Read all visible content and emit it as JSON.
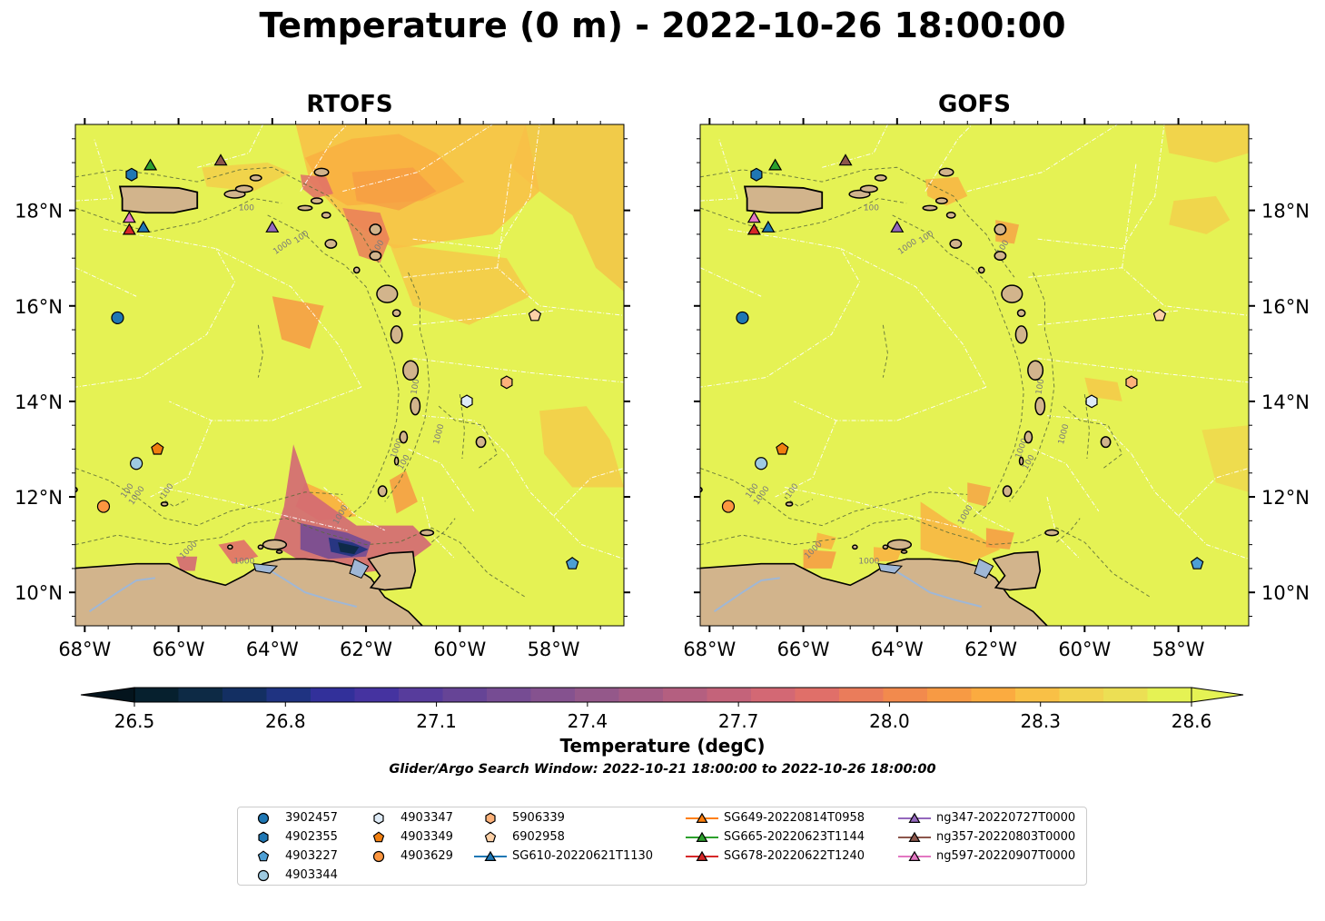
{
  "title": "Temperature (0 m) - 2022-10-26 18:00:00",
  "panels": [
    {
      "title": "RTOFS",
      "variant": "rtofs"
    },
    {
      "title": "GOFS",
      "variant": "gofs"
    }
  ],
  "axes": {
    "lon_range": [
      -68.2,
      -56.5
    ],
    "lat_range": [
      9.3,
      19.8
    ],
    "x_ticks": [
      -68,
      -66,
      -64,
      -62,
      -60,
      -58
    ],
    "x_tick_labels": [
      "68°W",
      "66°W",
      "64°W",
      "62°W",
      "60°W",
      "58°W"
    ],
    "y_ticks": [
      10,
      12,
      14,
      16,
      18
    ],
    "y_tick_labels": [
      "10°N",
      "12°N",
      "14°N",
      "16°N",
      "18°N"
    ]
  },
  "colorbar": {
    "label": "Temperature (degC)",
    "min": 26.5,
    "max": 28.6,
    "ticks": [
      26.5,
      26.8,
      27.1,
      27.4,
      27.7,
      28.0,
      28.3,
      28.6
    ],
    "tick_labels": [
      "26.5",
      "26.8",
      "27.1",
      "27.4",
      "27.7",
      "28.0",
      "28.3",
      "28.6"
    ],
    "extend": "both",
    "colors": [
      "#06202e",
      "#0d2a45",
      "#132f62",
      "#1f3381",
      "#32309a",
      "#4533a0",
      "#573c9c",
      "#664496",
      "#764c93",
      "#85528f",
      "#94588a",
      "#a45b85",
      "#b45f80",
      "#c4637a",
      "#d36874",
      "#e06f69",
      "#ea7c5b",
      "#f28a4d",
      "#f79a44",
      "#fbab40",
      "#f9c046",
      "#f2d34f",
      "#ecdf54",
      "#e5f254"
    ]
  },
  "search_window": "Glider/Argo Search Window: 2022-10-21 18:00:00 to 2022-10-26 18:00:00",
  "contour_labels": [
    "100",
    "1000"
  ],
  "observations": [
    {
      "id": "3902457",
      "marker": "circle",
      "color": "#1f77b4",
      "lon": -67.3,
      "lat": 15.75
    },
    {
      "id": "4902355",
      "marker": "hexagon",
      "color": "#1f77b4",
      "lon": -67.0,
      "lat": 18.75
    },
    {
      "id": "4903227",
      "marker": "pentagon",
      "color": "#4d9fd4",
      "lon": -57.6,
      "lat": 10.6
    },
    {
      "id": "4903344",
      "marker": "circle",
      "color": "#9ecae1",
      "lon": -66.9,
      "lat": 12.7
    },
    {
      "id": "4903347",
      "marker": "hexagon",
      "color": "#deebf7",
      "lon": -59.85,
      "lat": 14.0
    },
    {
      "id": "4903349",
      "marker": "pentagon",
      "color": "#f07e0f",
      "lon": -66.45,
      "lat": 13.0
    },
    {
      "id": "4903629",
      "marker": "circle",
      "color": "#fc9640",
      "lon": -67.6,
      "lat": 11.8
    },
    {
      "id": "5906339",
      "marker": "hexagon",
      "color": "#fdb27a",
      "lon": -59.0,
      "lat": 14.4
    },
    {
      "id": "6902958",
      "marker": "pentagon",
      "color": "#fdd0a6",
      "lon": -58.4,
      "lat": 15.8
    },
    {
      "id": "SG610-20220621T1130",
      "marker": "triangle",
      "color": "#1f77b4",
      "line": "#1f77b4",
      "lon": -66.75,
      "lat": 17.65
    },
    {
      "id": "SG649-20220814T0958",
      "marker": "triangle",
      "color": "#ff7f0e",
      "line": "#ff7f0e",
      "lon": null,
      "lat": null
    },
    {
      "id": "SG665-20220623T1144",
      "marker": "triangle",
      "color": "#2ca02c",
      "line": "#2ca02c",
      "lon": -66.6,
      "lat": 18.95
    },
    {
      "id": "SG678-20220622T1240",
      "marker": "triangle",
      "color": "#d62728",
      "line": "#d62728",
      "lon": -67.05,
      "lat": 17.6
    },
    {
      "id": "ng347-20220727T0000",
      "marker": "triangle",
      "color": "#9467bd",
      "line": "#9467bd",
      "lon": -64.0,
      "lat": 17.65
    },
    {
      "id": "ng357-20220803T0000",
      "marker": "triangle",
      "color": "#8c564b",
      "line": "#8c564b",
      "lon": -65.1,
      "lat": 19.05
    },
    {
      "id": "ng597-20220907T0000",
      "marker": "triangle",
      "color": "#e377c2",
      "line": "#e377c2",
      "lon": -67.05,
      "lat": 17.85
    }
  ]
}
